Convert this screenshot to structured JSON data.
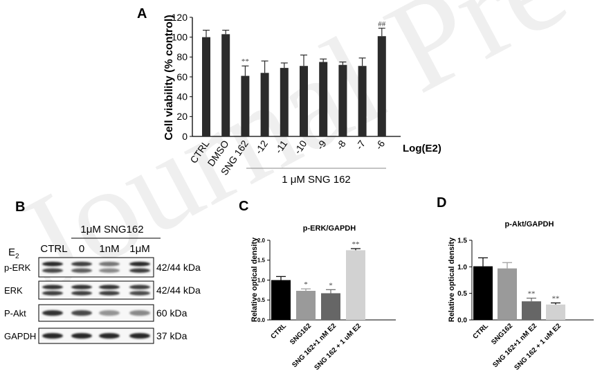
{
  "watermark": "Journal Pre-proof",
  "panels": {
    "A": "A",
    "B": "B",
    "C": "C",
    "D": "D"
  },
  "chart_data": [
    {
      "panel": "A",
      "type": "bar",
      "categories": [
        "CTRL",
        "DMSO",
        "SNG 162",
        "-12",
        "-11",
        "-10",
        "-9",
        "-8",
        "-7",
        "-6"
      ],
      "values": [
        100,
        103,
        61,
        64,
        69,
        71,
        75,
        72,
        71,
        101
      ],
      "errors": [
        7,
        4,
        10,
        12,
        5,
        11,
        3,
        3,
        8,
        8
      ],
      "annotations": [
        "",
        "",
        "**",
        "",
        "",
        "",
        "",
        "",
        "",
        "##"
      ],
      "ylabel": "Cell viability (% control)",
      "yticks": [
        0,
        20,
        40,
        60,
        80,
        100,
        120
      ],
      "ylim": [
        0,
        120
      ],
      "xaxis_extra_label": "Log(E2)",
      "group_label": "1 μM SNG 162",
      "bar_color": "#2b2b2b",
      "title": ""
    },
    {
      "panel": "C",
      "type": "bar",
      "title": "p-ERK/GAPDH",
      "categories": [
        "CTRL",
        "SNG162",
        "SNG 162+1 nM E2",
        "SNG 162 + 1 uM E2"
      ],
      "values": [
        1.0,
        0.73,
        0.67,
        1.75
      ],
      "errors": [
        0.09,
        0.05,
        0.09,
        0.04
      ],
      "annotations": [
        "",
        "*",
        "*",
        "**"
      ],
      "colors": [
        "#000000",
        "#9a9a9a",
        "#666666",
        "#d2d2d2"
      ],
      "ylabel": "Relative optical density",
      "yticks": [
        "0.0",
        "0.5",
        "1.0",
        "1.5",
        "2.0"
      ],
      "ylim": [
        0,
        2.0
      ]
    },
    {
      "panel": "D",
      "type": "bar",
      "title": "p-Akt/GAPDH",
      "categories": [
        "CTRL",
        "SNG162",
        "SNG 162+1 nM E2",
        "SNG 162 + 1 uM E2"
      ],
      "values": [
        1.01,
        0.97,
        0.35,
        0.29
      ],
      "errors": [
        0.16,
        0.11,
        0.06,
        0.03
      ],
      "annotations": [
        "",
        "",
        "**",
        "**"
      ],
      "colors": [
        "#000000",
        "#9a9a9a",
        "#666666",
        "#d2d2d2"
      ],
      "ylabel": "Relative optical density",
      "yticks": [
        "0.0",
        "0.5",
        "1.0",
        "1.5"
      ],
      "ylim": [
        0,
        1.5
      ]
    }
  ],
  "blot": {
    "header_group": "1μM SNG162",
    "e2_label": "E",
    "e2_subscript": "2",
    "lanes": [
      "CTRL",
      "0",
      "1nM",
      "1μM"
    ],
    "rows": [
      {
        "label": "p-ERK",
        "kda": "42/44 kDa"
      },
      {
        "label": "ERK",
        "kda": "42/44 kDa"
      },
      {
        "label": "P-Akt",
        "kda": "60 kDa"
      },
      {
        "label": "GAPDH",
        "kda": "37 kDa"
      }
    ]
  }
}
